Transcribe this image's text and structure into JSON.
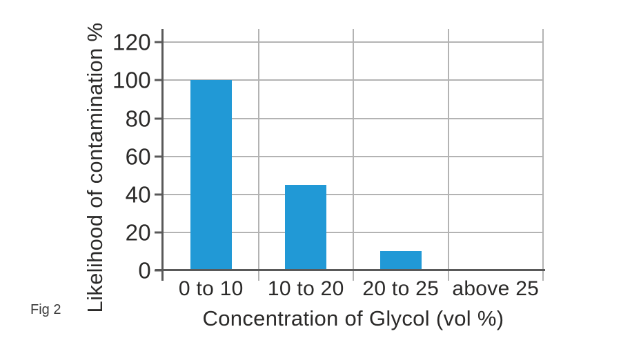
{
  "figure": {
    "caption": "Fig 2"
  },
  "chart_data": {
    "type": "bar",
    "title": "",
    "xlabel": "Concentration of Glycol (vol %)",
    "ylabel": "Likelihood of contamination %",
    "categories": [
      "0 to 10",
      "10 to 20",
      "20 to 25",
      "above 25"
    ],
    "values": [
      100,
      45,
      10,
      0
    ],
    "y_ticks": [
      0,
      20,
      40,
      60,
      80,
      100,
      120
    ],
    "ylim": [
      0,
      127
    ],
    "grid": true,
    "legend": "none",
    "colors": {
      "bar": "#2199D6",
      "axis": "#595959",
      "grid": "#B3B3B3",
      "text": "#2B2A29"
    }
  }
}
